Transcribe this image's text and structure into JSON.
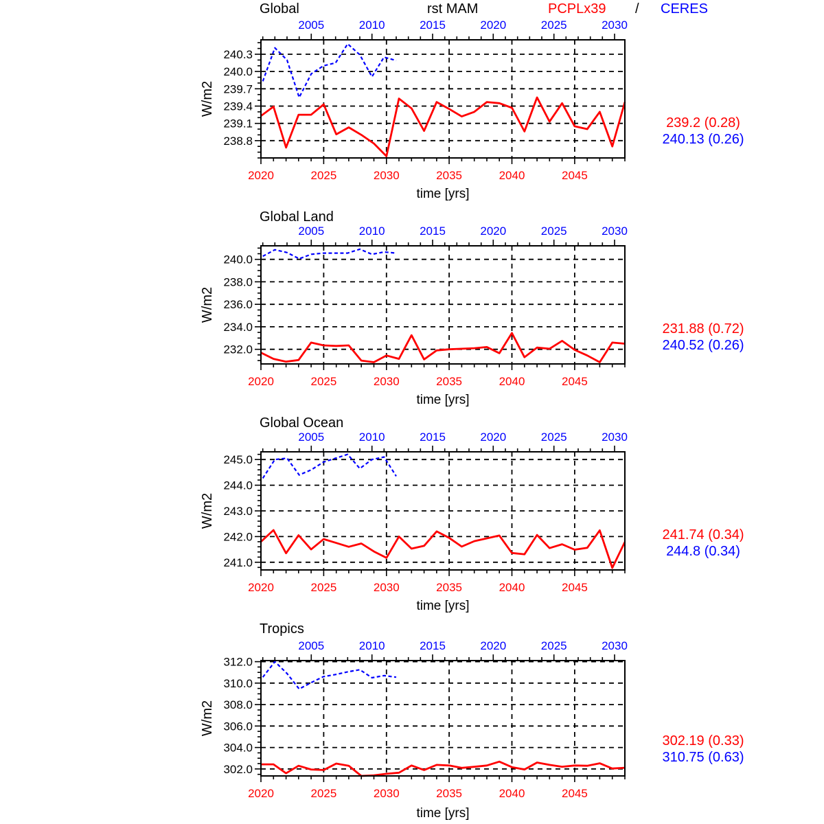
{
  "header": {
    "run_label": "rst MAM",
    "series_red_label": "PCPLx39",
    "separator": "/",
    "series_blue_label": "CERES"
  },
  "colors": {
    "red": "#ff0000",
    "blue": "#0000ff",
    "axis": "#000000",
    "grid": "#000000",
    "background": "#ffffff"
  },
  "chart_data": [
    {
      "type": "line",
      "title": "Global",
      "xlabel": "time [yrs]",
      "ylabel": "W/m2",
      "stats": {
        "red": "239.2 (0.28)",
        "blue": "240.13 (0.26)"
      },
      "y_axis": {
        "range": [
          238.5,
          240.55
        ],
        "tick_values": [
          238.8,
          239.1,
          239.4,
          239.7,
          240.0,
          240.3
        ],
        "tick_labels": [
          "238.8",
          "239.1",
          "239.4",
          "239.7",
          "240.0",
          "240.3"
        ],
        "minor_step": 0.1
      },
      "bottom_axis": {
        "range": [
          2020,
          2049
        ],
        "tick_values": [
          2020,
          2025,
          2030,
          2035,
          2040,
          2045
        ],
        "minor_step": 1,
        "label_color": "#ff0000"
      },
      "top_axis": {
        "range": [
          2000.85,
          2030.85
        ],
        "tick_values": [
          2005,
          2010,
          2015,
          2020,
          2025,
          2030
        ],
        "minor_step": 1,
        "label_color": "#0000ff"
      },
      "grid": "dashed",
      "series": [
        {
          "name": "PCPLx39",
          "axis": "bottom",
          "color": "#ff0000",
          "line_style": "solid",
          "x_start": 2020,
          "x_step": 1,
          "values": [
            239.23,
            239.39,
            238.68,
            239.25,
            239.25,
            239.43,
            238.91,
            239.03,
            238.9,
            238.75,
            238.53,
            239.53,
            239.36,
            238.97,
            239.47,
            239.35,
            239.22,
            239.3,
            239.47,
            239.45,
            239.37,
            238.96,
            239.55,
            239.13,
            239.45,
            239.05,
            239.0,
            239.3,
            238.7,
            239.47
          ]
        },
        {
          "name": "CERES",
          "axis": "top",
          "color": "#0000ff",
          "line_style": "dashed",
          "x_start": 2001,
          "x_step": 1,
          "values": [
            239.83,
            240.41,
            240.2,
            239.55,
            239.96,
            240.1,
            240.15,
            240.48,
            240.29,
            239.91,
            240.25,
            240.19
          ]
        }
      ]
    },
    {
      "type": "line",
      "title": "Global Land",
      "xlabel": "time [yrs]",
      "ylabel": "W/m2",
      "stats": {
        "red": "231.88 (0.72)",
        "blue": "240.52 (0.26)"
      },
      "y_axis": {
        "range": [
          230.7,
          241.2
        ],
        "tick_values": [
          232.0,
          234.0,
          236.0,
          238.0,
          240.0
        ],
        "tick_labels": [
          "232.0",
          "234.0",
          "236.0",
          "238.0",
          "240.0"
        ],
        "minor_step": 0.5
      },
      "bottom_axis": {
        "range": [
          2020,
          2049
        ],
        "tick_values": [
          2020,
          2025,
          2030,
          2035,
          2040,
          2045
        ],
        "minor_step": 1,
        "label_color": "#ff0000"
      },
      "top_axis": {
        "range": [
          2000.85,
          2030.85
        ],
        "tick_values": [
          2005,
          2010,
          2015,
          2020,
          2025,
          2030
        ],
        "minor_step": 1,
        "label_color": "#0000ff"
      },
      "grid": "dashed",
      "series": [
        {
          "name": "PCPLx39",
          "axis": "bottom",
          "color": "#ff0000",
          "line_style": "solid",
          "x_start": 2020,
          "x_step": 1,
          "values": [
            231.7,
            231.15,
            230.9,
            231.05,
            232.6,
            232.35,
            232.3,
            232.35,
            231.0,
            230.85,
            231.45,
            231.15,
            233.25,
            231.1,
            231.9,
            232.0,
            232.05,
            232.1,
            232.2,
            231.65,
            233.45,
            231.3,
            232.15,
            232.05,
            232.75,
            231.95,
            231.45,
            230.85,
            232.6,
            232.5
          ]
        },
        {
          "name": "CERES",
          "axis": "top",
          "color": "#0000ff",
          "line_style": "dashed",
          "x_start": 2001,
          "x_step": 1,
          "values": [
            240.27,
            240.85,
            240.6,
            240.05,
            240.45,
            240.55,
            240.55,
            240.55,
            240.9,
            240.45,
            240.65,
            240.55
          ]
        }
      ]
    },
    {
      "type": "line",
      "title": "Global Ocean",
      "xlabel": "time [yrs]",
      "ylabel": "W/m2",
      "stats": {
        "red": "241.74 (0.34)",
        "blue": "244.8 (0.34)"
      },
      "y_axis": {
        "range": [
          240.7,
          245.3
        ],
        "tick_values": [
          241.0,
          242.0,
          243.0,
          244.0,
          245.0
        ],
        "tick_labels": [
          "241.0",
          "242.0",
          "243.0",
          "244.0",
          "245.0"
        ],
        "minor_step": 0.2
      },
      "bottom_axis": {
        "range": [
          2020,
          2049
        ],
        "tick_values": [
          2020,
          2025,
          2030,
          2035,
          2040,
          2045
        ],
        "minor_step": 1,
        "label_color": "#ff0000"
      },
      "top_axis": {
        "range": [
          2000.85,
          2030.85
        ],
        "tick_values": [
          2005,
          2010,
          2015,
          2020,
          2025,
          2030
        ],
        "minor_step": 1,
        "label_color": "#0000ff"
      },
      "grid": "dashed",
      "series": [
        {
          "name": "PCPLx39",
          "axis": "bottom",
          "color": "#ff0000",
          "line_style": "solid",
          "x_start": 2020,
          "x_step": 1,
          "values": [
            241.8,
            242.25,
            241.35,
            242.05,
            241.5,
            241.9,
            241.75,
            241.6,
            241.73,
            241.42,
            241.17,
            242.0,
            241.53,
            241.64,
            242.2,
            241.95,
            241.61,
            241.82,
            241.93,
            242.04,
            241.36,
            241.31,
            242.06,
            241.55,
            241.7,
            241.49,
            241.56,
            242.24,
            240.78,
            241.79
          ]
        },
        {
          "name": "CERES",
          "axis": "top",
          "color": "#0000ff",
          "line_style": "dashed",
          "x_start": 2001,
          "x_step": 1,
          "values": [
            244.27,
            245.0,
            245.05,
            244.4,
            244.6,
            244.9,
            245.05,
            245.2,
            244.65,
            245.0,
            245.1,
            244.35
          ]
        }
      ]
    },
    {
      "type": "line",
      "title": "Tropics",
      "xlabel": "time [yrs]",
      "ylabel": "W/m2",
      "stats": {
        "red": "302.19 (0.33)",
        "blue": "310.75 (0.63)"
      },
      "y_axis": {
        "range": [
          301.35,
          312.1
        ],
        "tick_values": [
          302.0,
          304.0,
          306.0,
          308.0,
          310.0,
          312.0
        ],
        "tick_labels": [
          "302.0",
          "304.0",
          "306.0",
          "308.0",
          "310.0",
          "312.0"
        ],
        "minor_step": 0.5
      },
      "bottom_axis": {
        "range": [
          2020,
          2049
        ],
        "tick_values": [
          2020,
          2025,
          2030,
          2035,
          2040,
          2045
        ],
        "minor_step": 1,
        "label_color": "#ff0000"
      },
      "top_axis": {
        "range": [
          2000.85,
          2030.85
        ],
        "tick_values": [
          2005,
          2010,
          2015,
          2020,
          2025,
          2030
        ],
        "minor_step": 1,
        "label_color": "#0000ff"
      },
      "grid": "dashed",
      "series": [
        {
          "name": "PCPLx39",
          "axis": "bottom",
          "color": "#ff0000",
          "line_style": "solid",
          "x_start": 2020,
          "x_step": 1,
          "values": [
            302.43,
            302.43,
            301.6,
            302.3,
            301.95,
            301.9,
            302.5,
            302.3,
            301.35,
            301.4,
            301.55,
            301.65,
            302.32,
            301.9,
            302.38,
            302.32,
            302.1,
            302.2,
            302.32,
            302.68,
            302.17,
            301.95,
            302.6,
            302.38,
            302.21,
            302.32,
            302.3,
            302.53,
            302.04,
            302.11
          ]
        },
        {
          "name": "CERES",
          "axis": "top",
          "color": "#0000ff",
          "line_style": "dashed",
          "x_start": 2001,
          "x_step": 1,
          "values": [
            310.55,
            312.0,
            310.9,
            309.45,
            310.05,
            310.6,
            310.8,
            311.05,
            311.25,
            310.5,
            310.7,
            310.55
          ]
        }
      ]
    }
  ]
}
